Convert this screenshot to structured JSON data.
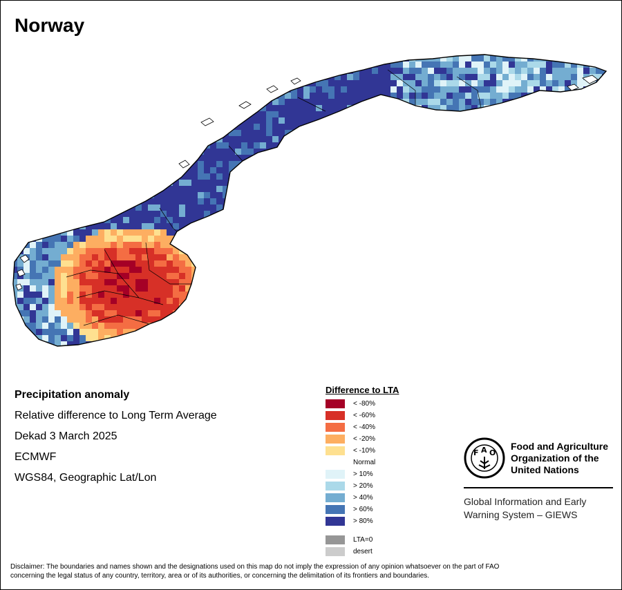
{
  "title": "Norway",
  "info": {
    "heading": "Precipitation anomaly",
    "subtitle": "Relative difference to Long Term Average",
    "period": "Dekad 3 March 2025",
    "source": "ECMWF",
    "projection": "WGS84, Geographic Lat/Lon"
  },
  "legend": {
    "title": "Difference to LTA",
    "classes": [
      {
        "label": "< -80%",
        "color": "#a50026"
      },
      {
        "label": "< -60%",
        "color": "#d73027"
      },
      {
        "label": "< -40%",
        "color": "#f46d43"
      },
      {
        "label": "< -20%",
        "color": "#fdae61"
      },
      {
        "label": "< -10%",
        "color": "#fee090"
      },
      {
        "label": "Normal",
        "color": "#ffffff"
      },
      {
        "label": "> 10%",
        "color": "#e0f3f8"
      },
      {
        "label": "> 20%",
        "color": "#abd9e9"
      },
      {
        "label": "> 40%",
        "color": "#74add1"
      },
      {
        "label": "> 60%",
        "color": "#4575b4"
      },
      {
        "label": "> 80%",
        "color": "#313695"
      }
    ],
    "extra": [
      {
        "label": "LTA=0",
        "color": "#969696"
      },
      {
        "label": "desert",
        "color": "#cccccc"
      }
    ]
  },
  "fao": {
    "line1": "Food and Agriculture",
    "line2": "Organization of the",
    "line3": "United Nations",
    "giews1": "Global Information and Early",
    "giews2": "Warning System – GIEWS"
  },
  "disclaimer": {
    "line1": "Disclaimer: The boundaries and names shown and the designations used on this map do not imply the expression of any opinion whatsoever on the part of FAO",
    "line2": "concerning the legal status of any country, territory, area or of its authorities, or concerning the delimitation of its frontiers and boundaries."
  }
}
